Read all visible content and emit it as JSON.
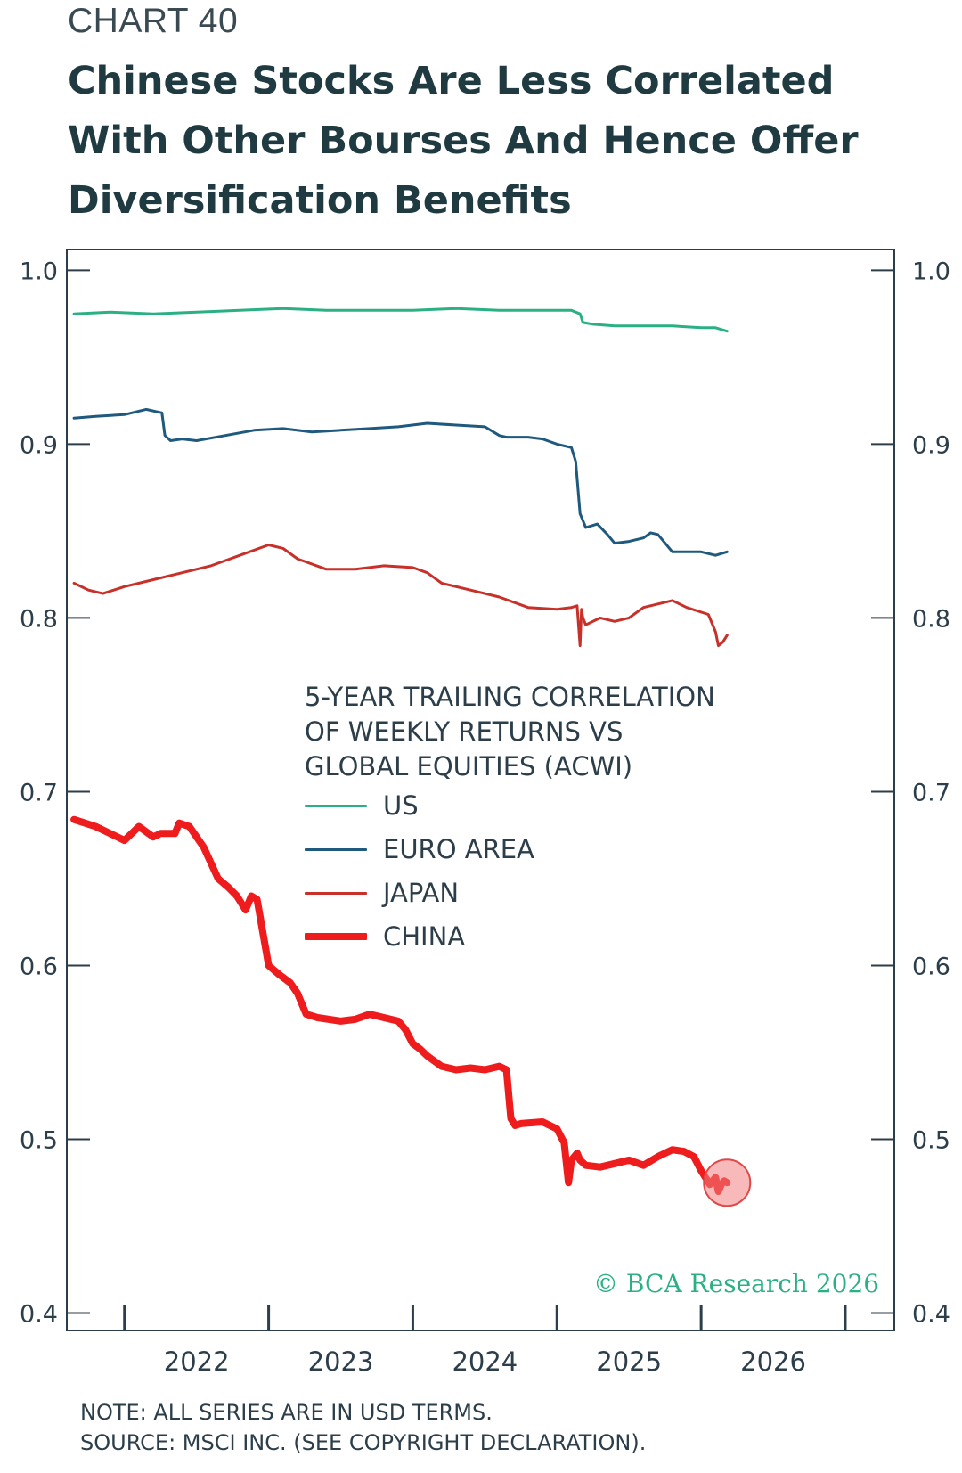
{
  "chart_label": "CHART 40",
  "title_lines": [
    "Chinese Stocks Are Less Correlated",
    "With Other Bourses And Hence Offer",
    "Diversification Benefits"
  ],
  "legend": {
    "title_lines": [
      "5-YEAR TRAILING CORRELATION",
      "OF WEEKLY RETURNS VS",
      "GLOBAL EQUITIES (ACWI)"
    ]
  },
  "copyright": "© BCA Research 2026",
  "footer": {
    "note": "NOTE: ALL SERIES ARE IN USD TERMS.",
    "source": "SOURCE: MSCI INC. (SEE COPYRIGHT DECLARATION)."
  },
  "chart_data": {
    "type": "line",
    "xlim": [
      2021.1,
      2026.84
    ],
    "ylim": [
      0.39,
      1.012
    ],
    "y_ticks": [
      0.4,
      0.5,
      0.6,
      0.7,
      0.8,
      0.9,
      1.0
    ],
    "y_tick_labels": [
      "0.4",
      "0.5",
      "0.6",
      "0.7",
      "0.8",
      "0.9",
      "1.0"
    ],
    "x_tick_labels": [
      "2022",
      "2023",
      "2024",
      "2025",
      "2026"
    ],
    "x_label_positions": [
      2022.0,
      2023.0,
      2024.0,
      2025.0,
      2026.0
    ],
    "x_tick_positions": [
      2021.5,
      2022.5,
      2023.5,
      2024.5,
      2025.5,
      2026.5
    ],
    "grid": false,
    "dual_y_axis": true,
    "legend_position": "center",
    "highlight": {
      "x": 2025.68,
      "y": 0.475,
      "color": "#f08080"
    },
    "series": [
      {
        "name": "US",
        "color": "#2bb085",
        "width": 3,
        "x": [
          2021.15,
          2021.4,
          2021.7,
          2022.0,
          2022.3,
          2022.6,
          2022.9,
          2023.2,
          2023.5,
          2023.8,
          2024.1,
          2024.4,
          2024.6,
          2024.66,
          2024.68,
          2024.75,
          2024.9,
          2025.1,
          2025.3,
          2025.5,
          2025.6,
          2025.68
        ],
        "y": [
          0.975,
          0.976,
          0.975,
          0.976,
          0.977,
          0.978,
          0.977,
          0.977,
          0.977,
          0.978,
          0.977,
          0.977,
          0.977,
          0.975,
          0.97,
          0.969,
          0.968,
          0.968,
          0.968,
          0.967,
          0.967,
          0.965
        ]
      },
      {
        "name": "EURO AREA",
        "color": "#1f5a7e",
        "width": 3,
        "x": [
          2021.15,
          2021.3,
          2021.5,
          2021.65,
          2021.76,
          2021.78,
          2021.82,
          2021.9,
          2022.0,
          2022.2,
          2022.4,
          2022.6,
          2022.8,
          2023.0,
          2023.2,
          2023.4,
          2023.6,
          2023.8,
          2024.0,
          2024.1,
          2024.15,
          2024.3,
          2024.4,
          2024.5,
          2024.6,
          2024.63,
          2024.66,
          2024.7,
          2024.78,
          2024.85,
          2024.9,
          2025.0,
          2025.1,
          2025.15,
          2025.2,
          2025.3,
          2025.4,
          2025.5,
          2025.6,
          2025.68
        ],
        "y": [
          0.915,
          0.916,
          0.917,
          0.92,
          0.918,
          0.905,
          0.902,
          0.903,
          0.902,
          0.905,
          0.908,
          0.909,
          0.907,
          0.908,
          0.909,
          0.91,
          0.912,
          0.911,
          0.91,
          0.905,
          0.904,
          0.904,
          0.903,
          0.9,
          0.898,
          0.89,
          0.86,
          0.852,
          0.854,
          0.848,
          0.843,
          0.844,
          0.846,
          0.849,
          0.848,
          0.838,
          0.838,
          0.838,
          0.836,
          0.838
        ]
      },
      {
        "name": "JAPAN",
        "color": "#c8302a",
        "width": 3,
        "x": [
          2021.15,
          2021.25,
          2021.35,
          2021.5,
          2021.7,
          2021.9,
          2022.1,
          2022.3,
          2022.5,
          2022.6,
          2022.7,
          2022.9,
          2023.1,
          2023.3,
          2023.5,
          2023.6,
          2023.7,
          2023.9,
          2024.1,
          2024.3,
          2024.5,
          2024.6,
          2024.64,
          2024.66,
          2024.67,
          2024.68,
          2024.7,
          2024.8,
          2024.9,
          2025.0,
          2025.1,
          2025.2,
          2025.3,
          2025.4,
          2025.55,
          2025.6,
          2025.62,
          2025.65,
          2025.68
        ],
        "y": [
          0.82,
          0.816,
          0.814,
          0.818,
          0.822,
          0.826,
          0.83,
          0.836,
          0.842,
          0.84,
          0.834,
          0.828,
          0.828,
          0.83,
          0.829,
          0.826,
          0.82,
          0.816,
          0.812,
          0.806,
          0.805,
          0.806,
          0.807,
          0.784,
          0.805,
          0.8,
          0.796,
          0.8,
          0.798,
          0.8,
          0.806,
          0.808,
          0.81,
          0.806,
          0.802,
          0.792,
          0.784,
          0.786,
          0.79
        ]
      },
      {
        "name": "CHINA",
        "color": "#ee1c1c",
        "width": 8,
        "x": [
          2021.15,
          2021.3,
          2021.4,
          2021.5,
          2021.6,
          2021.7,
          2021.75,
          2021.85,
          2021.88,
          2021.95,
          2022.0,
          2022.05,
          2022.15,
          2022.22,
          2022.28,
          2022.34,
          2022.38,
          2022.42,
          2022.5,
          2022.57,
          2022.65,
          2022.7,
          2022.76,
          2022.84,
          2023.0,
          2023.1,
          2023.2,
          2023.3,
          2023.4,
          2023.45,
          2023.5,
          2023.55,
          2023.6,
          2023.7,
          2023.8,
          2023.9,
          2024.0,
          2024.1,
          2024.15,
          2024.18,
          2024.21,
          2024.25,
          2024.4,
          2024.5,
          2024.55,
          2024.58,
          2024.6,
          2024.62,
          2024.64,
          2024.66,
          2024.7,
          2024.8,
          2024.9,
          2025.0,
          2025.1,
          2025.2,
          2025.3,
          2025.38,
          2025.45,
          2025.5,
          2025.56,
          2025.6,
          2025.62,
          2025.64,
          2025.66,
          2025.68
        ],
        "y": [
          0.684,
          0.68,
          0.676,
          0.672,
          0.68,
          0.674,
          0.676,
          0.676,
          0.682,
          0.68,
          0.674,
          0.668,
          0.65,
          0.645,
          0.64,
          0.632,
          0.64,
          0.638,
          0.6,
          0.595,
          0.59,
          0.584,
          0.572,
          0.57,
          0.568,
          0.569,
          0.572,
          0.57,
          0.568,
          0.563,
          0.555,
          0.552,
          0.548,
          0.542,
          0.54,
          0.541,
          0.54,
          0.542,
          0.54,
          0.512,
          0.508,
          0.509,
          0.51,
          0.506,
          0.498,
          0.475,
          0.488,
          0.49,
          0.492,
          0.488,
          0.485,
          0.484,
          0.486,
          0.488,
          0.485,
          0.49,
          0.494,
          0.493,
          0.49,
          0.482,
          0.474,
          0.478,
          0.47,
          0.474,
          0.476,
          0.475
        ]
      }
    ]
  }
}
